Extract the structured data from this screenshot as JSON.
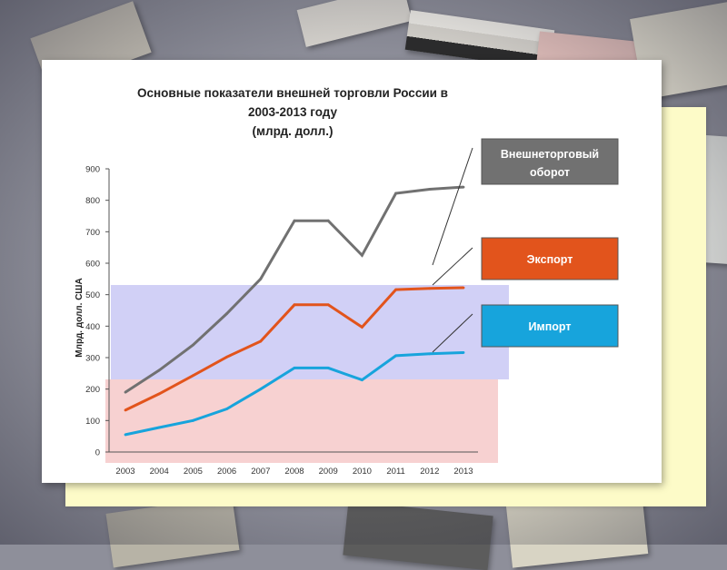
{
  "chart_data": {
    "type": "line",
    "title": "Основные показатели внешней торговли России в",
    "title_line2": "2003-2013 году",
    "subtitle": "(млрд. долл.)",
    "xlabel": "",
    "ylabel": "Млрд. долл. США",
    "categories": [
      "2003",
      "2004",
      "2005",
      "2006",
      "2007",
      "2008",
      "2009",
      "2010",
      "2011",
      "2012",
      "2013"
    ],
    "ylim": [
      0,
      900
    ],
    "yticks": [
      "0",
      "100",
      "200",
      "300",
      "400",
      "500",
      "600",
      "700",
      "800",
      "900"
    ],
    "grid": false,
    "legend_position": "right",
    "series": [
      {
        "name": "Внешнеторговый оборот",
        "color": "#717171",
        "values": [
          190,
          260,
          340,
          440,
          550,
          735,
          735,
          625,
          822,
          835,
          842
        ]
      },
      {
        "name": "Экспорт",
        "color": "#e2541c",
        "values": [
          133,
          185,
          243,
          302,
          352,
          468,
          468,
          397,
          516,
          520,
          522
        ]
      },
      {
        "name": "Импорт",
        "color": "#17a4dc",
        "values": [
          55,
          78,
          100,
          137,
          200,
          267,
          267,
          229,
          306,
          312,
          316
        ]
      }
    ],
    "legend_colors": {
      "text": "#ffffff"
    }
  }
}
